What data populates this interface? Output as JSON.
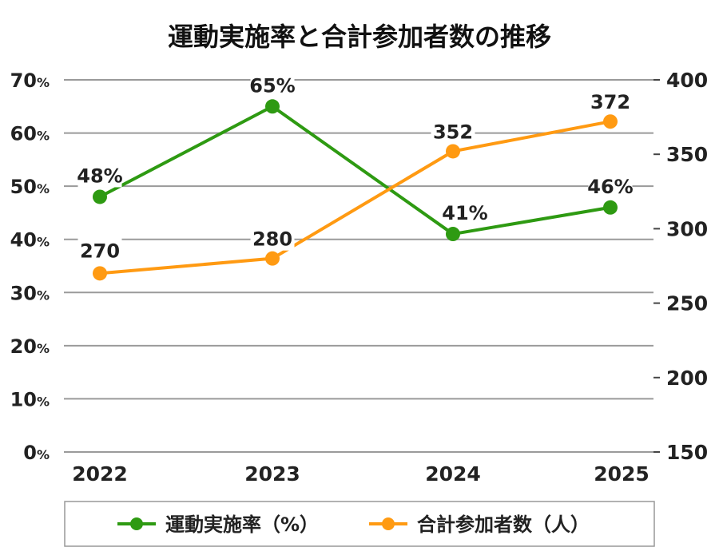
{
  "chart_data": {
    "type": "line",
    "title": "運動実施率と合計参加者数の推移",
    "categories": [
      "2022",
      "2023",
      "2024",
      "2025"
    ],
    "series": [
      {
        "name": "運動実施率（%）",
        "axis": "left",
        "color": "#2e9a12",
        "values": [
          48,
          65,
          41,
          46
        ],
        "labels": [
          "48%",
          "65%",
          "41%",
          "46%"
        ]
      },
      {
        "name": "合計参加者数（人）",
        "axis": "right",
        "color": "#ff9a12",
        "values": [
          270,
          280,
          352,
          372
        ],
        "labels": [
          "270",
          "280",
          "352",
          "372"
        ]
      }
    ],
    "y_left": {
      "min": 0,
      "max": 70,
      "ticks": [
        0,
        10,
        20,
        30,
        40,
        50,
        60,
        70
      ],
      "tick_labels": [
        "0",
        "10",
        "20",
        "30",
        "40",
        "50",
        "60",
        "70"
      ],
      "unit": "%"
    },
    "y_right": {
      "min": 150,
      "max": 400,
      "ticks": [
        150,
        200,
        250,
        300,
        350,
        400
      ],
      "tick_labels": [
        "150",
        "200",
        "250",
        "300",
        "350",
        "400"
      ]
    },
    "grid": true,
    "legend_position": "bottom"
  }
}
